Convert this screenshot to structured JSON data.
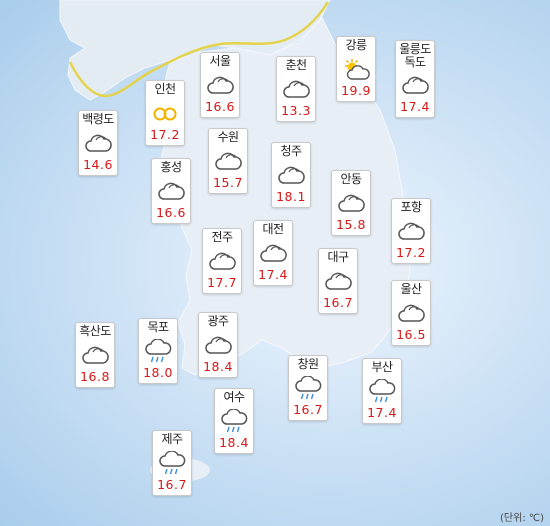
{
  "unit_label": "(단위: ℃)",
  "colors": {
    "sea": "#a9cdeb",
    "land": "#dfe8f1",
    "border": "#e8d84a",
    "temp": "#d71818"
  },
  "cities": [
    {
      "id": "baengnyeongdo",
      "name": "백령도",
      "temp": "14.6",
      "icon": "cloudy-icon"
    },
    {
      "id": "incheon",
      "name": "인천",
      "temp": "17.2",
      "icon": "haze-icon"
    },
    {
      "id": "seoul",
      "name": "서울",
      "temp": "16.6",
      "icon": "cloudy-icon"
    },
    {
      "id": "chuncheon",
      "name": "춘천",
      "temp": "13.3",
      "icon": "cloudy-icon"
    },
    {
      "id": "gangneung",
      "name": "강릉",
      "temp": "19.9",
      "icon": "partly-cloudy-icon"
    },
    {
      "id": "ulleungdo",
      "name": "울릉도\n독도",
      "temp": "17.4",
      "icon": "cloudy-icon"
    },
    {
      "id": "suwon",
      "name": "수원",
      "temp": "15.7",
      "icon": "cloudy-icon"
    },
    {
      "id": "cheongju",
      "name": "청주",
      "temp": "18.1",
      "icon": "cloudy-icon"
    },
    {
      "id": "hongseong",
      "name": "홍성",
      "temp": "16.6",
      "icon": "cloudy-icon"
    },
    {
      "id": "andong",
      "name": "안동",
      "temp": "15.8",
      "icon": "cloudy-icon"
    },
    {
      "id": "pohang",
      "name": "포항",
      "temp": "17.2",
      "icon": "cloudy-icon"
    },
    {
      "id": "jeonju",
      "name": "전주",
      "temp": "17.7",
      "icon": "cloudy-icon"
    },
    {
      "id": "daejeon",
      "name": "대전",
      "temp": "17.4",
      "icon": "cloudy-icon"
    },
    {
      "id": "daegu",
      "name": "대구",
      "temp": "16.7",
      "icon": "cloudy-icon"
    },
    {
      "id": "ulsan",
      "name": "울산",
      "temp": "16.5",
      "icon": "cloudy-icon"
    },
    {
      "id": "heuksando",
      "name": "흑산도",
      "temp": "16.8",
      "icon": "cloudy-icon"
    },
    {
      "id": "mokpo",
      "name": "목포",
      "temp": "18.0",
      "icon": "rain-icon"
    },
    {
      "id": "gwangju",
      "name": "광주",
      "temp": "18.4",
      "icon": "cloudy-icon"
    },
    {
      "id": "changwon",
      "name": "창원",
      "temp": "16.7",
      "icon": "rain-icon"
    },
    {
      "id": "busan",
      "name": "부산",
      "temp": "17.4",
      "icon": "rain-icon"
    },
    {
      "id": "yeosu",
      "name": "여수",
      "temp": "18.4",
      "icon": "rain-icon"
    },
    {
      "id": "jeju",
      "name": "제주",
      "temp": "16.7",
      "icon": "rain-icon"
    }
  ]
}
